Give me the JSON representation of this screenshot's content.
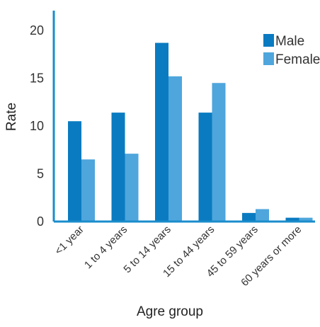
{
  "chart_data": {
    "type": "bar",
    "xlabel": "Agre group",
    "ylabel": "Rate",
    "ylim": [
      0,
      20
    ],
    "yticks": [
      "0",
      "5",
      "10",
      "15",
      "20"
    ],
    "categories": [
      "<1 year",
      "1 to 4 years",
      "5 to 14 years",
      "15 to 44 years",
      "45 to 59 years",
      "60 years or more"
    ],
    "series": [
      {
        "name": "Male",
        "color": "#0a7bc1",
        "values": [
          10.5,
          11.4,
          18.7,
          11.4,
          0.9,
          0.4
        ]
      },
      {
        "name": "Female",
        "color": "#4ea6dc",
        "values": [
          6.5,
          7.1,
          15.2,
          14.5,
          1.3,
          0.4
        ]
      }
    ],
    "legend_position": "top-right",
    "grid": false,
    "axis_color": "#1a8ccc"
  }
}
